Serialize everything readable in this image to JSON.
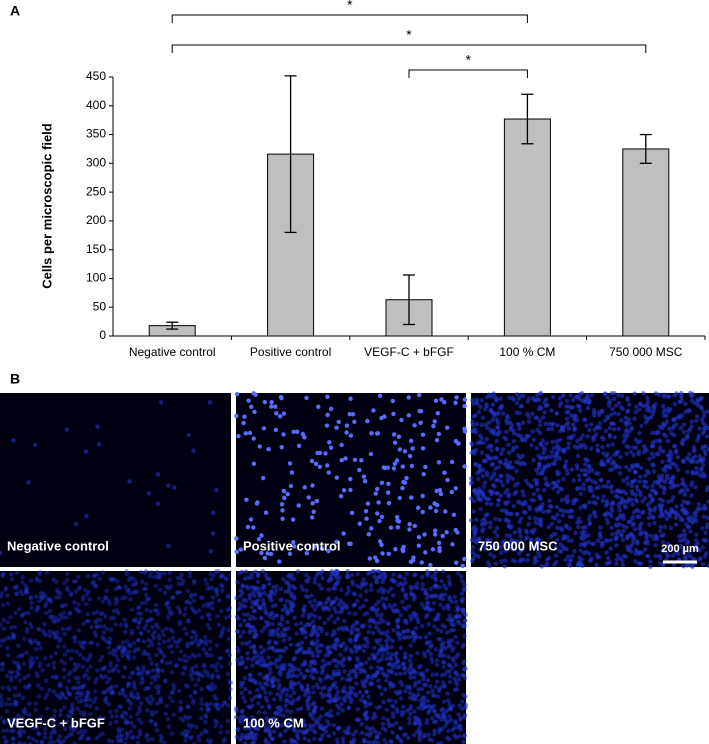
{
  "chart_data": {
    "type": "bar",
    "panel_label": "A",
    "y_label": "Cells per microscopic field",
    "categories": [
      "Negative control",
      "Positive control",
      "VEGF-C + bFGF",
      "100 % CM",
      "750 000 MSC"
    ],
    "values": [
      18,
      316,
      63,
      377,
      325
    ],
    "errors": [
      6,
      136,
      43,
      43,
      25
    ],
    "color": "#bfbfbf",
    "ylim": [
      0,
      450
    ],
    "yticks": [
      0,
      50,
      100,
      150,
      200,
      250,
      300,
      350,
      400,
      450
    ],
    "brackets": [
      {
        "between": [
          0,
          3
        ],
        "label": "*"
      },
      {
        "between": [
          0,
          4
        ],
        "label": "*"
      },
      {
        "between": [
          2,
          3
        ],
        "label": "*"
      }
    ]
  },
  "images_panel": {
    "panel_label": "B",
    "images": [
      {
        "label": "Negative control"
      },
      {
        "label": "Positive control"
      },
      {
        "label": "750 000 MSC"
      },
      {
        "label": "VEGF-C + bFGF"
      },
      {
        "label": "100 % CM"
      }
    ],
    "scale_bar": "200 µm"
  }
}
